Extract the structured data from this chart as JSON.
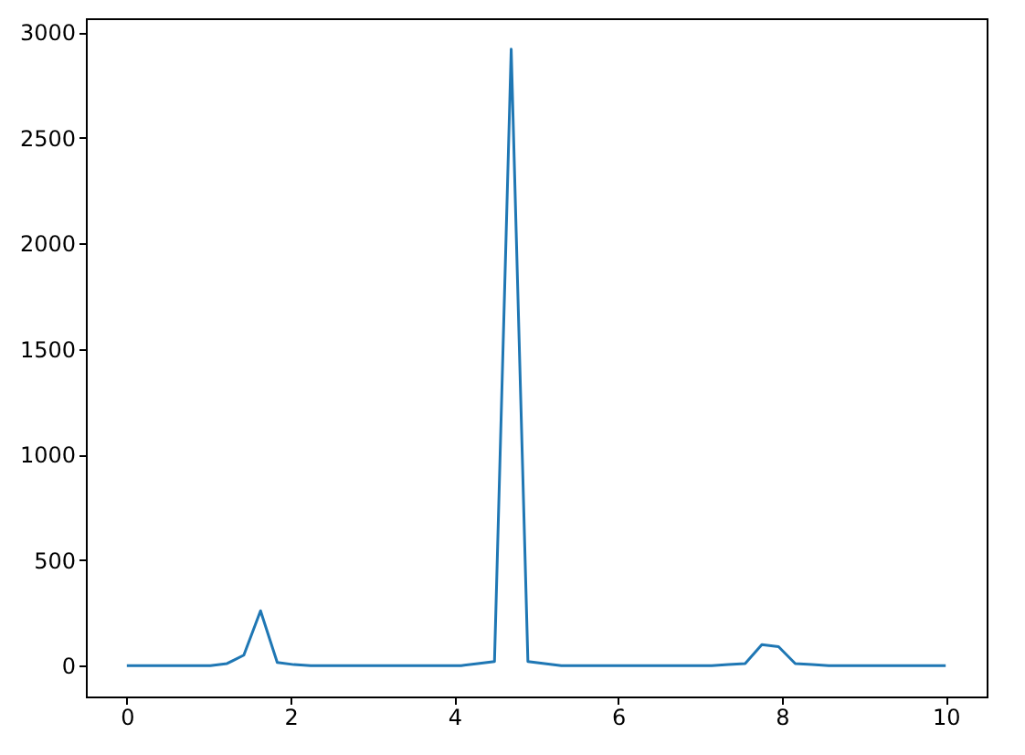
{
  "chart_data": {
    "type": "line",
    "x": [
      0,
      0.204,
      0.408,
      0.612,
      0.816,
      1.02,
      1.224,
      1.429,
      1.633,
      1.837,
      2.041,
      2.245,
      2.449,
      2.653,
      2.857,
      3.061,
      3.265,
      3.469,
      3.673,
      3.878,
      4.082,
      4.286,
      4.49,
      4.694,
      4.898,
      5.102,
      5.306,
      5.51,
      5.714,
      5.918,
      6.122,
      6.327,
      6.531,
      6.735,
      6.939,
      7.143,
      7.347,
      7.551,
      7.755,
      7.959,
      8.163,
      8.367,
      8.571,
      8.776,
      8.98,
      9.184,
      9.388,
      9.592,
      9.796,
      10
    ],
    "series": [
      {
        "color": "#1f77b4",
        "values": [
          0,
          0,
          0,
          0,
          0,
          0,
          10,
          50,
          260,
          15,
          5,
          0,
          0,
          0,
          0,
          0,
          0,
          0,
          0,
          0,
          0,
          10,
          20,
          2920,
          20,
          10,
          0,
          0,
          0,
          0,
          0,
          0,
          0,
          0,
          0,
          0,
          5,
          10,
          100,
          90,
          10,
          5,
          0,
          0,
          0,
          0,
          0,
          0,
          0,
          0
        ]
      }
    ],
    "xlim": [
      -0.5,
      10.5
    ],
    "ylim": [
      -146,
      3066
    ],
    "xticks": [
      0,
      2,
      4,
      6,
      8,
      10
    ],
    "yticks": [
      0,
      500,
      1000,
      1500,
      2000,
      2500,
      3000
    ],
    "grid": false
  }
}
